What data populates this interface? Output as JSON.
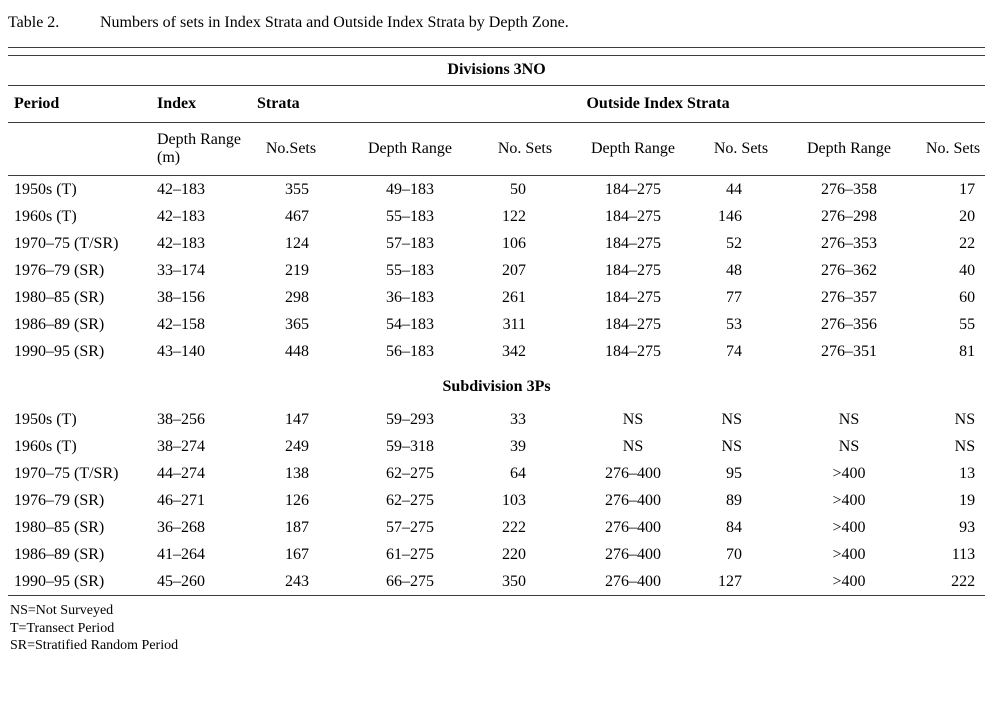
{
  "page": {
    "title_label": "Table 2.",
    "title_caption": "Numbers of sets in Index Strata and Outside Index Strata by Depth Zone."
  },
  "table": {
    "header_row1": {
      "period": "Period",
      "index": "Index",
      "strata": "Strata",
      "outside": "Outside Index Strata"
    },
    "header_row2": {
      "index_depth_range": "Depth Range (m)",
      "index_no_sets": "No.Sets",
      "outside1_depth_range": "Depth Range",
      "outside1_no_sets": "No. Sets",
      "outside2_depth_range": "Depth Range",
      "outside2_no_sets": "No. Sets",
      "outside3_depth_range": "Depth Range",
      "outside3_no_sets": "No. Sets"
    },
    "sections": [
      {
        "name": "Divisions 3NO",
        "heading_position": "top",
        "rows": [
          [
            "1950s (T)",
            "42–183",
            "355",
            "49–183",
            "50",
            "184–275",
            "44",
            "276–358",
            "17"
          ],
          [
            "1960s (T)",
            "42–183",
            "467",
            "55–183",
            "122",
            "184–275",
            "146",
            "276–298",
            "20"
          ],
          [
            "1970–75 (T/SR)",
            "42–183",
            "124",
            "57–183",
            "106",
            "184–275",
            "52",
            "276–353",
            "22"
          ],
          [
            "1976–79 (SR)",
            "33–174",
            "219",
            "55–183",
            "207",
            "184–275",
            "48",
            "276–362",
            "40"
          ],
          [
            "1980–85 (SR)",
            "38–156",
            "298",
            "36–183",
            "261",
            "184–275",
            "77",
            "276–357",
            "60"
          ],
          [
            "1986–89 (SR)",
            "42–158",
            "365",
            "54–183",
            "311",
            "184–275",
            "53",
            "276–356",
            "55"
          ],
          [
            "1990–95 (SR)",
            "43–140",
            "448",
            "56–183",
            "342",
            "184–275",
            "74",
            "276–351",
            "81"
          ]
        ]
      },
      {
        "name": "Subdivision 3Ps",
        "heading_position": "inline",
        "rows": [
          [
            "1950s (T)",
            "38–256",
            "147",
            "59–293",
            "33",
            "NS",
            "NS",
            "NS",
            "NS"
          ],
          [
            "1960s (T)",
            "38–274",
            "249",
            "59–318",
            "39",
            "NS",
            "NS",
            "NS",
            "NS"
          ],
          [
            "1970–75 (T/SR)",
            "44–274",
            "138",
            "62–275",
            "64",
            "276–400",
            "95",
            ">400",
            "13"
          ],
          [
            "1976–79 (SR)",
            "46–271",
            "126",
            "62–275",
            "103",
            "276–400",
            "89",
            ">400",
            "19"
          ],
          [
            "1980–85 (SR)",
            "36–268",
            "187",
            "57–275",
            "222",
            "276–400",
            "84",
            ">400",
            "93"
          ],
          [
            "1986–89 (SR)",
            "41–264",
            "167",
            "61–275",
            "220",
            "276–400",
            "70",
            ">400",
            "113"
          ],
          [
            "1990–95 (SR)",
            "45–260",
            "243",
            "66–275",
            "350",
            "276–400",
            "127",
            ">400",
            "222"
          ]
        ]
      }
    ]
  },
  "footnotes": [
    "NS=Not Surveyed",
    "T=Transect Period",
    "SR=Stratified Random Period"
  ]
}
